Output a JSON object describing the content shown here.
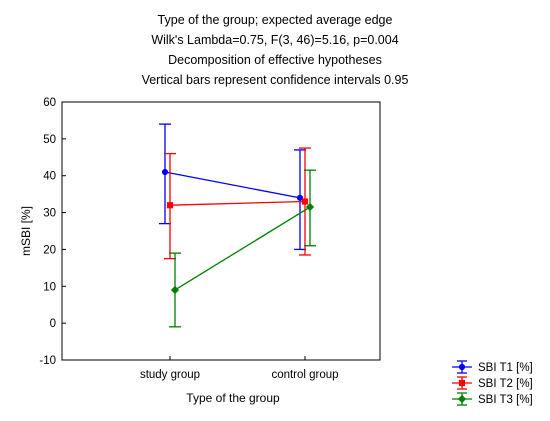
{
  "chart_data": {
    "type": "line",
    "title_lines": [
      "Type of the group; expected average edge",
      "Wilk's Lambda=0.75, F(3, 46)=5.16, p=0.004",
      "Decomposition of effective hypotheses",
      "Vertical bars represent confidence intervals 0.95"
    ],
    "xlabel": "Type of the group",
    "ylabel": "mSBI [%]",
    "categories": [
      "study group",
      "control group"
    ],
    "ylim": [
      -10,
      60
    ],
    "yticks": [
      -10,
      0,
      10,
      20,
      30,
      40,
      50,
      60
    ],
    "grid": false,
    "legend_position": "bottom-right",
    "series": [
      {
        "name": "SBI T1 [%]",
        "color": "#0000ff",
        "marker": "circle",
        "values": [
          41,
          34
        ],
        "ci_low": [
          27,
          20
        ],
        "ci_high": [
          54,
          47
        ]
      },
      {
        "name": "SBI T2 [%]",
        "color": "#ff0000",
        "marker": "square",
        "values": [
          32,
          33
        ],
        "ci_low": [
          17.5,
          18.5
        ],
        "ci_high": [
          46,
          47.5
        ]
      },
      {
        "name": "SBI T3 [%]",
        "color": "#007f00",
        "marker": "diamond",
        "values": [
          9,
          31.5
        ],
        "ci_low": [
          -1,
          21
        ],
        "ci_high": [
          19,
          41.5
        ]
      }
    ]
  }
}
